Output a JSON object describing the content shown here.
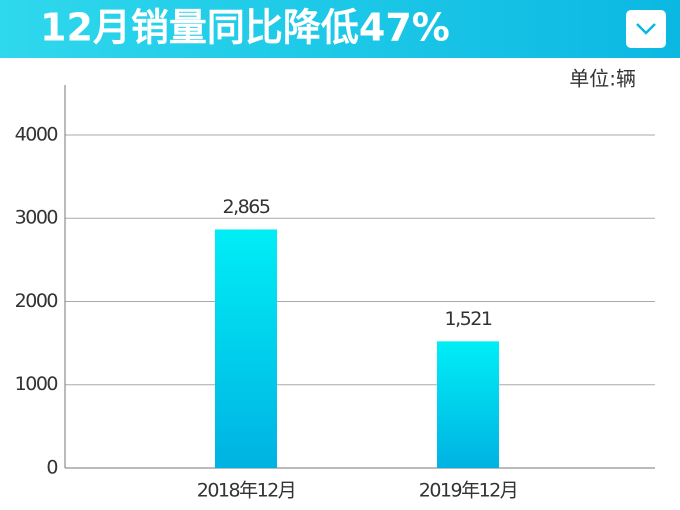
{
  "chart_data": {
    "type": "bar",
    "title": "12月销量同比降低47%",
    "unit": "单位:辆",
    "categories": [
      "2018年12月",
      "2019年12月"
    ],
    "values": [
      2865,
      1521
    ],
    "value_labels": [
      "2,865",
      "1,521"
    ],
    "color_top": "#00eef6",
    "color_bottom": "#00b2e2",
    "ylim": [
      0,
      4600
    ],
    "yticks": [
      0,
      1000,
      2000,
      3000,
      4000
    ],
    "grid": true
  }
}
